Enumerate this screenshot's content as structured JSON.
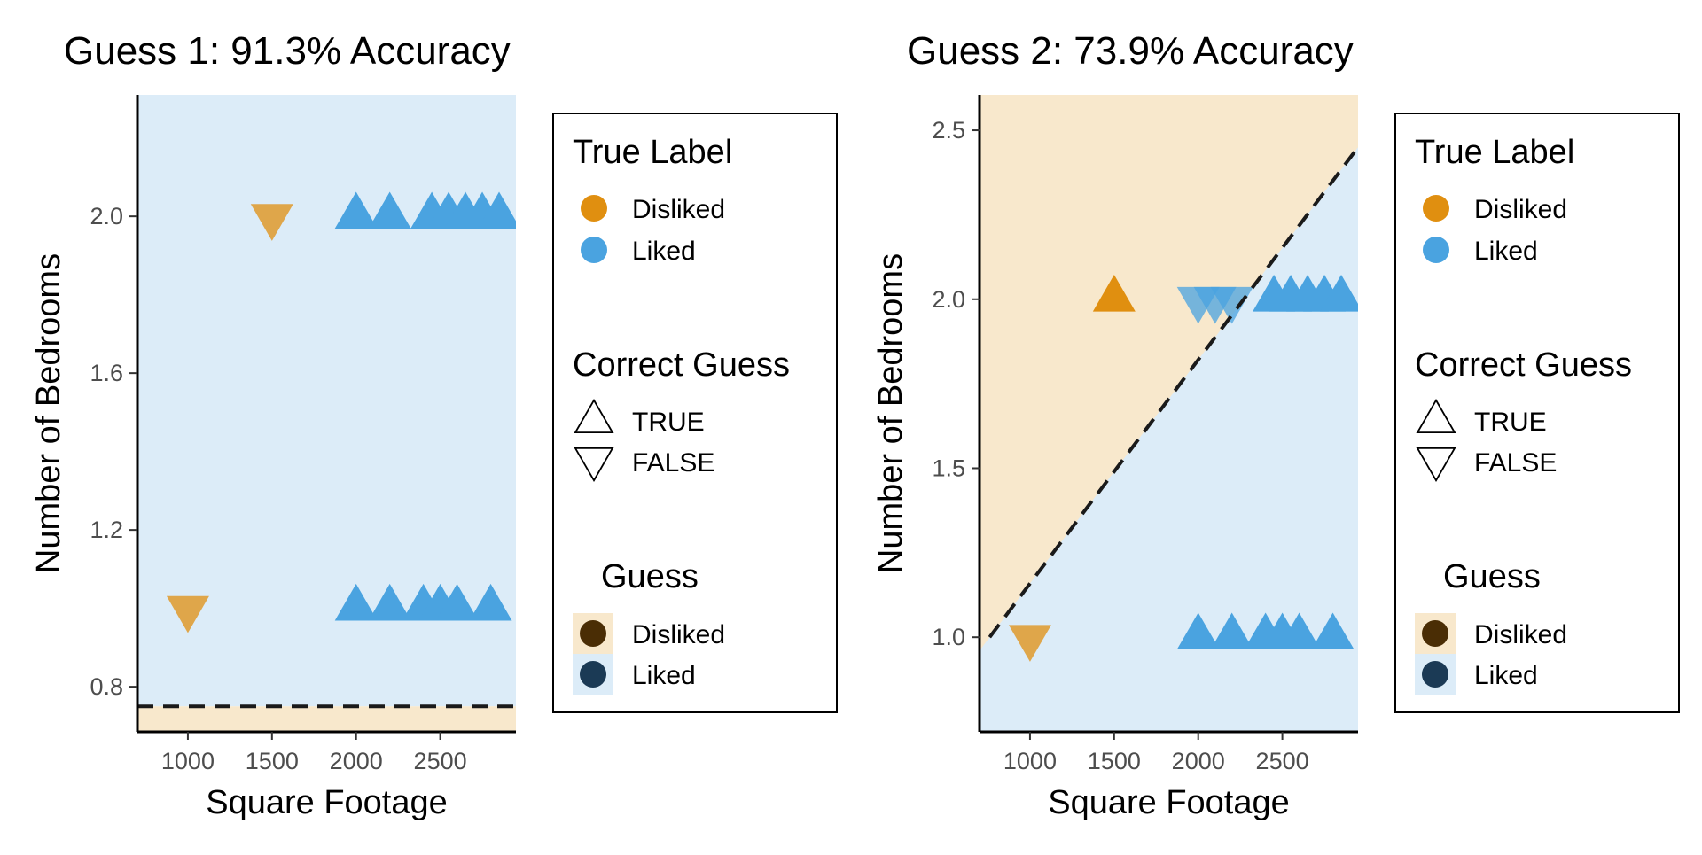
{
  "colors": {
    "liked": "#4aa3e0",
    "disliked": "#e08f10",
    "region_liked": "#dcecf8",
    "region_disliked": "#f8e8cc",
    "boundary": "#1a1a1a",
    "key_disliked": "#4a2d05",
    "key_liked": "#1b3a55"
  },
  "legend": {
    "true_label": {
      "title": "True Label",
      "items": [
        "Disliked",
        "Liked"
      ]
    },
    "correct_guess": {
      "title": "Correct Guess",
      "items": [
        "TRUE",
        "FALSE"
      ]
    },
    "guess": {
      "title": "Guess",
      "items": [
        "Disliked",
        "Liked"
      ]
    }
  },
  "chart_data": [
    {
      "type": "scatter",
      "title": "Guess 1: 91.3% Accuracy",
      "xlabel": "Square Footage",
      "ylabel": "Number of Bedrooms",
      "xlim": [
        700,
        2950
      ],
      "ylim": [
        0.685,
        2.31
      ],
      "xticks": [
        1000,
        1500,
        2000,
        2500
      ],
      "xtick_labels": [
        "1000",
        "1500",
        "2000",
        "2500"
      ],
      "yticks": [
        0.8,
        1.2,
        1.6,
        2.0
      ],
      "ytick_labels": [
        "0.8",
        "1.2",
        "1.6",
        "2.0"
      ],
      "boundary": {
        "type": "horizontal",
        "y": 0.75
      },
      "regions": {
        "above": "Liked",
        "below": "Disliked"
      },
      "points": [
        {
          "x": 1500,
          "y": 2,
          "true_label": "Disliked",
          "correct": false
        },
        {
          "x": 1000,
          "y": 1,
          "true_label": "Disliked",
          "correct": false
        },
        {
          "x": 2000,
          "y": 2,
          "true_label": "Liked",
          "correct": true
        },
        {
          "x": 2200,
          "y": 2,
          "true_label": "Liked",
          "correct": true
        },
        {
          "x": 2450,
          "y": 2,
          "true_label": "Liked",
          "correct": true
        },
        {
          "x": 2550,
          "y": 2,
          "true_label": "Liked",
          "correct": true
        },
        {
          "x": 2650,
          "y": 2,
          "true_label": "Liked",
          "correct": true
        },
        {
          "x": 2750,
          "y": 2,
          "true_label": "Liked",
          "correct": true
        },
        {
          "x": 2850,
          "y": 2,
          "true_label": "Liked",
          "correct": true
        },
        {
          "x": 2000,
          "y": 1,
          "true_label": "Liked",
          "correct": true
        },
        {
          "x": 2200,
          "y": 1,
          "true_label": "Liked",
          "correct": true
        },
        {
          "x": 2400,
          "y": 1,
          "true_label": "Liked",
          "correct": true
        },
        {
          "x": 2500,
          "y": 1,
          "true_label": "Liked",
          "correct": true
        },
        {
          "x": 2600,
          "y": 1,
          "true_label": "Liked",
          "correct": true
        },
        {
          "x": 2800,
          "y": 1,
          "true_label": "Liked",
          "correct": true
        }
      ]
    },
    {
      "type": "scatter",
      "title": "Guess 2: 73.9% Accuracy",
      "xlabel": "Square Footage",
      "ylabel": "Number of Bedrooms",
      "xlim": [
        700,
        2950
      ],
      "ylim": [
        0.72,
        2.605
      ],
      "xticks": [
        1000,
        1500,
        2000,
        2500
      ],
      "xtick_labels": [
        "1000",
        "1500",
        "2000",
        "2500"
      ],
      "yticks": [
        1.0,
        1.5,
        2.0,
        2.5
      ],
      "ytick_labels": [
        "1.0",
        "1.5",
        "2.0",
        "2.5"
      ],
      "boundary": {
        "type": "line",
        "from": [
          760,
          1.0
        ],
        "to": [
          2950,
          2.45
        ]
      },
      "regions": {
        "above": "Disliked",
        "below": "Liked"
      },
      "points": [
        {
          "x": 1500,
          "y": 2,
          "true_label": "Disliked",
          "correct": true
        },
        {
          "x": 1000,
          "y": 1,
          "true_label": "Disliked",
          "correct": false
        },
        {
          "x": 2000,
          "y": 2,
          "true_label": "Liked",
          "correct": false
        },
        {
          "x": 2100,
          "y": 2,
          "true_label": "Liked",
          "correct": false
        },
        {
          "x": 2200,
          "y": 2,
          "true_label": "Liked",
          "correct": false
        },
        {
          "x": 2450,
          "y": 2,
          "true_label": "Liked",
          "correct": true
        },
        {
          "x": 2550,
          "y": 2,
          "true_label": "Liked",
          "correct": true
        },
        {
          "x": 2650,
          "y": 2,
          "true_label": "Liked",
          "correct": true
        },
        {
          "x": 2750,
          "y": 2,
          "true_label": "Liked",
          "correct": true
        },
        {
          "x": 2850,
          "y": 2,
          "true_label": "Liked",
          "correct": true
        },
        {
          "x": 2000,
          "y": 1,
          "true_label": "Liked",
          "correct": true
        },
        {
          "x": 2200,
          "y": 1,
          "true_label": "Liked",
          "correct": true
        },
        {
          "x": 2400,
          "y": 1,
          "true_label": "Liked",
          "correct": true
        },
        {
          "x": 2500,
          "y": 1,
          "true_label": "Liked",
          "correct": true
        },
        {
          "x": 2600,
          "y": 1,
          "true_label": "Liked",
          "correct": true
        },
        {
          "x": 2800,
          "y": 1,
          "true_label": "Liked",
          "correct": true
        }
      ]
    }
  ]
}
